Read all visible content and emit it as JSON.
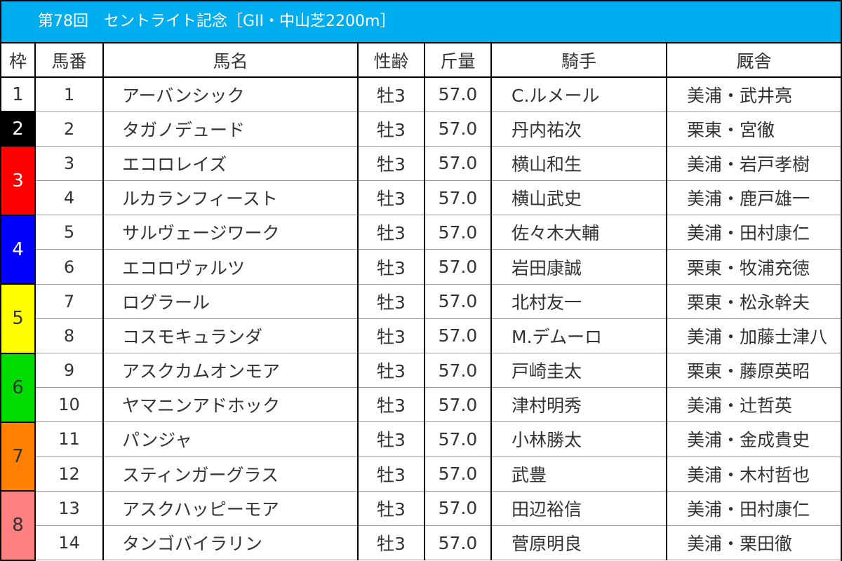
{
  "title": "第78回　セントライト記念［GII・中山芝2200m］",
  "headers": [
    "枠",
    "馬番",
    "馬名",
    "性齢",
    "斤量",
    "騎手",
    "厩舎"
  ],
  "frames": [
    {
      "label": "1",
      "color": "#ffffff",
      "text": "#333333"
    },
    {
      "label": "2",
      "color": "#000000",
      "text": "#ffffff"
    },
    {
      "label": "3",
      "color": "#ff0000",
      "text": "#ffffff"
    },
    {
      "label": "4",
      "color": "#0000ff",
      "text": "#ffffff"
    },
    {
      "label": "5",
      "color": "#ffff00",
      "text": "#333333"
    },
    {
      "label": "6",
      "color": "#00dd00",
      "text": "#333333"
    },
    {
      "label": "7",
      "color": "#ff8000",
      "text": "#333333"
    },
    {
      "label": "8",
      "color": "#ff8080",
      "text": "#333333"
    }
  ],
  "rows": [
    {
      "frame": 0,
      "num": "1",
      "name": "アーバンシック",
      "sexage": "牡3",
      "weight": "57.0",
      "jockey": "C.ルメール",
      "trainer": "美浦・武井亮"
    },
    {
      "frame": 1,
      "num": "2",
      "name": "タガノデュード",
      "sexage": "牡3",
      "weight": "57.0",
      "jockey": "丹内祐次",
      "trainer": "栗東・宮徹"
    },
    {
      "frame": 2,
      "num": "3",
      "name": "エコロレイズ",
      "sexage": "牡3",
      "weight": "57.0",
      "jockey": "横山和生",
      "trainer": "美浦・岩戸孝樹"
    },
    {
      "frame": 2,
      "num": "4",
      "name": "ルカランフィースト",
      "sexage": "牡3",
      "weight": "57.0",
      "jockey": "横山武史",
      "trainer": "美浦・鹿戸雄一"
    },
    {
      "frame": 3,
      "num": "5",
      "name": "サルヴェージワーク",
      "sexage": "牡3",
      "weight": "57.0",
      "jockey": "佐々木大輔",
      "trainer": "美浦・田村康仁"
    },
    {
      "frame": 3,
      "num": "6",
      "name": "エコロヴァルツ",
      "sexage": "牡3",
      "weight": "57.0",
      "jockey": "岩田康誠",
      "trainer": "栗東・牧浦充徳"
    },
    {
      "frame": 4,
      "num": "7",
      "name": "ログラール",
      "sexage": "牡3",
      "weight": "57.0",
      "jockey": "北村友一",
      "trainer": "栗東・松永幹夫"
    },
    {
      "frame": 4,
      "num": "8",
      "name": "コスモキュランダ",
      "sexage": "牡3",
      "weight": "57.0",
      "jockey": "M.デムーロ",
      "trainer": "美浦・加藤士津八"
    },
    {
      "frame": 5,
      "num": "9",
      "name": "アスクカムオンモア",
      "sexage": "牡3",
      "weight": "57.0",
      "jockey": "戸崎圭太",
      "trainer": "栗東・藤原英昭"
    },
    {
      "frame": 5,
      "num": "10",
      "name": "ヤマニンアドホック",
      "sexage": "牡3",
      "weight": "57.0",
      "jockey": "津村明秀",
      "trainer": "美浦・辻哲英"
    },
    {
      "frame": 6,
      "num": "11",
      "name": "パンジャ",
      "sexage": "牡3",
      "weight": "57.0",
      "jockey": "小林勝太",
      "trainer": "美浦・金成貴史"
    },
    {
      "frame": 6,
      "num": "12",
      "name": "スティンガーグラス",
      "sexage": "牡3",
      "weight": "57.0",
      "jockey": "武豊",
      "trainer": "美浦・木村哲也"
    },
    {
      "frame": 7,
      "num": "13",
      "name": "アスクハッピーモア",
      "sexage": "牡3",
      "weight": "57.0",
      "jockey": "田辺裕信",
      "trainer": "美浦・田村康仁"
    },
    {
      "frame": 7,
      "num": "14",
      "name": "タンゴバイラリン",
      "sexage": "牡3",
      "weight": "57.0",
      "jockey": "菅原明良",
      "trainer": "美浦・栗田徹"
    }
  ]
}
